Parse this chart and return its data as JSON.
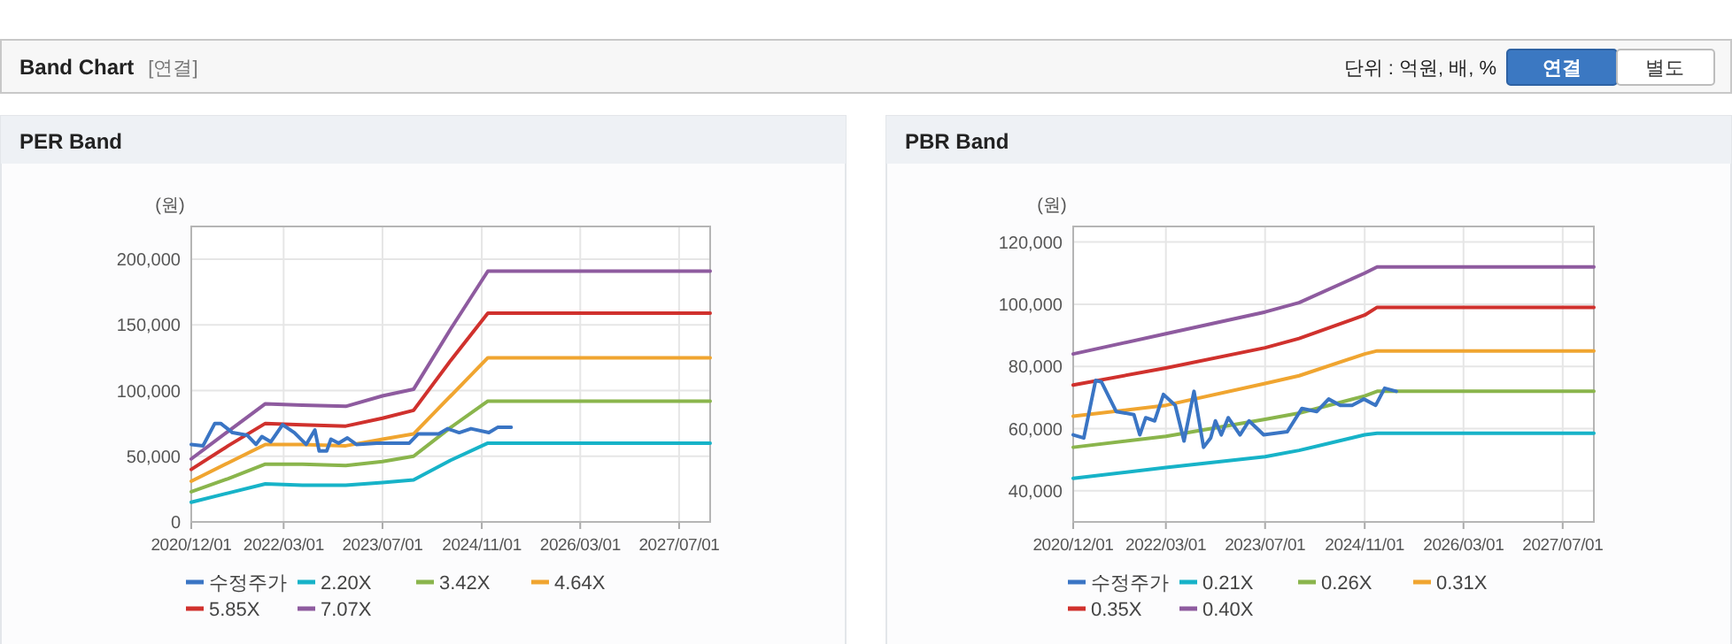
{
  "chart_data": [
    {
      "type": "other",
      "title": "Band Chart",
      "annotations": [
        "[연결]",
        "단위 : 억원, 배, %",
        "연결",
        "별도"
      ]
    },
    {
      "type": "line",
      "title": "PER Band",
      "ylabel": "(원)",
      "grid": true,
      "legend": "bottom",
      "xlim": [
        "2020-12-01",
        "2027-12-01"
      ],
      "ylim": [
        0,
        225000
      ],
      "xticks": [
        {
          "value": "2020-12-01",
          "label": "2020/12/01"
        },
        {
          "value": "2022-03-01",
          "label": "2022/03/01"
        },
        {
          "value": "2023-07-01",
          "label": "2023/07/01"
        },
        {
          "value": "2024-11-01",
          "label": "2024/11/01"
        },
        {
          "value": "2026-03-01",
          "label": "2026/03/01"
        },
        {
          "value": "2027-07-01",
          "label": "2027/07/01"
        }
      ],
      "yticks": [
        0,
        {
          "value": 50000,
          "label": "50,000"
        },
        {
          "value": 100000,
          "label": "100,000"
        },
        {
          "value": 150000,
          "label": "150,000"
        },
        {
          "value": 200000,
          "label": "200,000"
        }
      ],
      "series": [
        {
          "name": "수정주가",
          "color": "#3a75c4",
          "x": [
            "2020-12-01",
            "2021-01-28",
            "2021-03-27",
            "2021-04-25",
            "2021-06-22",
            "2021-09-03",
            "2021-10-16",
            "2021-11-14",
            "2021-12-28",
            "2022-02-24",
            "2022-04-23",
            "2022-06-20",
            "2022-08-02",
            "2022-08-23",
            "2022-09-29",
            "2022-10-20",
            "2022-11-27",
            "2023-01-09",
            "2023-02-22",
            "2023-06-03",
            "2023-11-10",
            "2023-12-23",
            "2024-04-03",
            "2024-05-16",
            "2024-07-13",
            "2024-09-09",
            "2024-12-06",
            "2025-01-18",
            "2025-03-26"
          ],
          "values": [
            59000,
            58000,
            75000,
            75000,
            68000,
            66000,
            59000,
            65000,
            61000,
            74000,
            68000,
            59000,
            70000,
            54000,
            54000,
            63000,
            60000,
            64000,
            59000,
            60000,
            60000,
            67000,
            67000,
            71000,
            68000,
            71000,
            68000,
            72000,
            72000
          ]
        },
        {
          "name": "2.20X",
          "color": "#17b3c8",
          "x": [
            "2020-12-01",
            "2021-06-01",
            "2021-12-01",
            "2022-06-01",
            "2023-01-01",
            "2023-07-01",
            "2023-12-01",
            "2024-06-01",
            "2024-12-01",
            "2027-12-01"
          ],
          "values": [
            15000,
            22000,
            29000,
            28000,
            28000,
            30000,
            32000,
            47000,
            60000,
            60000
          ]
        },
        {
          "name": "3.42X",
          "color": "#8ab54c",
          "x": [
            "2020-12-01",
            "2021-06-01",
            "2021-12-01",
            "2022-06-01",
            "2023-01-01",
            "2023-07-01",
            "2023-12-01",
            "2024-06-01",
            "2024-12-01",
            "2027-12-01"
          ],
          "values": [
            23000,
            33000,
            44000,
            44000,
            43000,
            46000,
            50000,
            72000,
            92000,
            92000
          ]
        },
        {
          "name": "4.64X",
          "color": "#f0a530",
          "x": [
            "2020-12-01",
            "2021-06-01",
            "2021-12-01",
            "2022-06-01",
            "2023-01-01",
            "2023-07-01",
            "2023-12-01",
            "2024-06-01",
            "2024-12-01",
            "2027-12-01"
          ],
          "values": [
            31000,
            45000,
            59000,
            59000,
            58000,
            63000,
            67000,
            96000,
            125000,
            125000
          ]
        },
        {
          "name": "5.85X",
          "color": "#d0312d",
          "x": [
            "2020-12-01",
            "2021-06-01",
            "2021-12-01",
            "2022-06-01",
            "2023-01-01",
            "2023-07-01",
            "2023-12-01",
            "2024-06-01",
            "2024-12-01",
            "2027-12-01"
          ],
          "values": [
            40000,
            58000,
            75000,
            74000,
            73000,
            79000,
            85000,
            123000,
            159000,
            159000
          ]
        },
        {
          "name": "7.07X",
          "color": "#8e5b9f",
          "x": [
            "2020-12-01",
            "2021-06-01",
            "2021-12-01",
            "2022-06-01",
            "2023-01-01",
            "2023-07-01",
            "2023-12-01",
            "2024-06-01",
            "2024-12-01",
            "2027-12-01"
          ],
          "values": [
            48000,
            69000,
            90000,
            89000,
            88000,
            96000,
            101000,
            147000,
            191000,
            191000
          ]
        }
      ]
    },
    {
      "type": "line",
      "title": "PBR Band",
      "ylabel": "(원)",
      "grid": true,
      "legend": "bottom",
      "xlim": [
        "2020-12-01",
        "2027-12-01"
      ],
      "ylim": [
        30000,
        125000
      ],
      "xticks": [
        {
          "value": "2020-12-01",
          "label": "2020/12/01"
        },
        {
          "value": "2022-03-01",
          "label": "2022/03/01"
        },
        {
          "value": "2023-07-01",
          "label": "2023/07/01"
        },
        {
          "value": "2024-11-01",
          "label": "2024/11/01"
        },
        {
          "value": "2026-03-01",
          "label": "2026/03/01"
        },
        {
          "value": "2027-07-01",
          "label": "2027/07/01"
        }
      ],
      "yticks": [
        {
          "value": 40000,
          "label": "40,000"
        },
        {
          "value": 60000,
          "label": "60,000"
        },
        {
          "value": 80000,
          "label": "80,000"
        },
        {
          "value": 100000,
          "label": "100,000"
        },
        {
          "value": 120000,
          "label": "120,000"
        }
      ],
      "series": [
        {
          "name": "수정주가",
          "color": "#3a75c4",
          "x": [
            "2020-12-01",
            "2021-01-22",
            "2021-03-21",
            "2021-04-19",
            "2021-06-30",
            "2021-09-25",
            "2021-10-24",
            "2021-11-22",
            "2022-01-05",
            "2022-02-17",
            "2022-04-16",
            "2022-05-29",
            "2022-07-17",
            "2022-09-02",
            "2022-10-07",
            "2022-10-30",
            "2022-11-28",
            "2023-01-01",
            "2023-02-28",
            "2023-04-13",
            "2023-06-24",
            "2023-10-18",
            "2023-12-29",
            "2024-03-11",
            "2024-05-08",
            "2024-07-04",
            "2024-08-31",
            "2024-10-28",
            "2024-12-25",
            "2025-02-07",
            "2025-04-05"
          ],
          "values": [
            58000,
            57000,
            75500,
            75000,
            65500,
            64500,
            58000,
            63500,
            62500,
            71000,
            67500,
            56000,
            72000,
            54000,
            57000,
            62500,
            58000,
            63500,
            58000,
            62500,
            58000,
            59000,
            66500,
            65500,
            69500,
            67500,
            67500,
            69500,
            67500,
            73000,
            72000
          ]
        },
        {
          "name": "0.21X",
          "color": "#17b3c8",
          "x": [
            "2020-12-01",
            "2022-03-01",
            "2023-07-01",
            "2023-12-15",
            "2024-11-01",
            "2025-01-01",
            "2027-12-01"
          ],
          "values": [
            44000,
            47500,
            51000,
            53000,
            58000,
            58500,
            58500
          ]
        },
        {
          "name": "0.26X",
          "color": "#8ab54c",
          "x": [
            "2020-12-01",
            "2022-03-01",
            "2023-07-01",
            "2023-12-15",
            "2024-11-01",
            "2025-01-01",
            "2027-12-01"
          ],
          "values": [
            54000,
            57500,
            63000,
            65000,
            70500,
            72000,
            72000
          ]
        },
        {
          "name": "0.31X",
          "color": "#f0a530",
          "x": [
            "2020-12-01",
            "2022-03-01",
            "2023-07-01",
            "2023-12-15",
            "2024-11-01",
            "2025-01-01",
            "2027-12-01"
          ],
          "values": [
            64000,
            67500,
            74500,
            77000,
            84000,
            85000,
            85000
          ]
        },
        {
          "name": "0.35X",
          "color": "#d0312d",
          "x": [
            "2020-12-01",
            "2022-03-01",
            "2023-07-01",
            "2023-12-15",
            "2024-11-01",
            "2025-01-01",
            "2027-12-01"
          ],
          "values": [
            74000,
            79500,
            86000,
            89000,
            96500,
            99000,
            99000
          ]
        },
        {
          "name": "0.40X",
          "color": "#8e5b9f",
          "x": [
            "2020-12-01",
            "2022-03-01",
            "2023-07-01",
            "2023-12-15",
            "2024-11-01",
            "2025-01-01",
            "2027-12-01"
          ],
          "values": [
            84000,
            90500,
            97500,
            100500,
            110000,
            112000,
            112000
          ]
        }
      ]
    }
  ]
}
